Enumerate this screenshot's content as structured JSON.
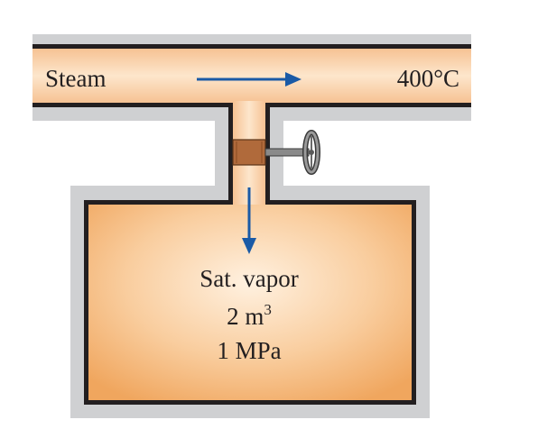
{
  "pipe": {
    "fluid_label": "Steam",
    "temperature_label": "400°C"
  },
  "tank": {
    "state_label": "Sat. vapor",
    "volume_value": "2 m",
    "volume_exponent": "3",
    "pressure_label": "1 MPa"
  },
  "colors": {
    "wall_gray": "#cfd0d2",
    "wall_dark": "#231f20",
    "steam_fill": "#f7c89c",
    "flow_arrow": "#1a5aa6",
    "valve_brown": "#b06a3b",
    "valve_gray": "#8a8a8a"
  },
  "icons": [
    "flow-arrow-right-icon",
    "flow-arrow-down-icon",
    "valve-icon",
    "handwheel-icon"
  ]
}
